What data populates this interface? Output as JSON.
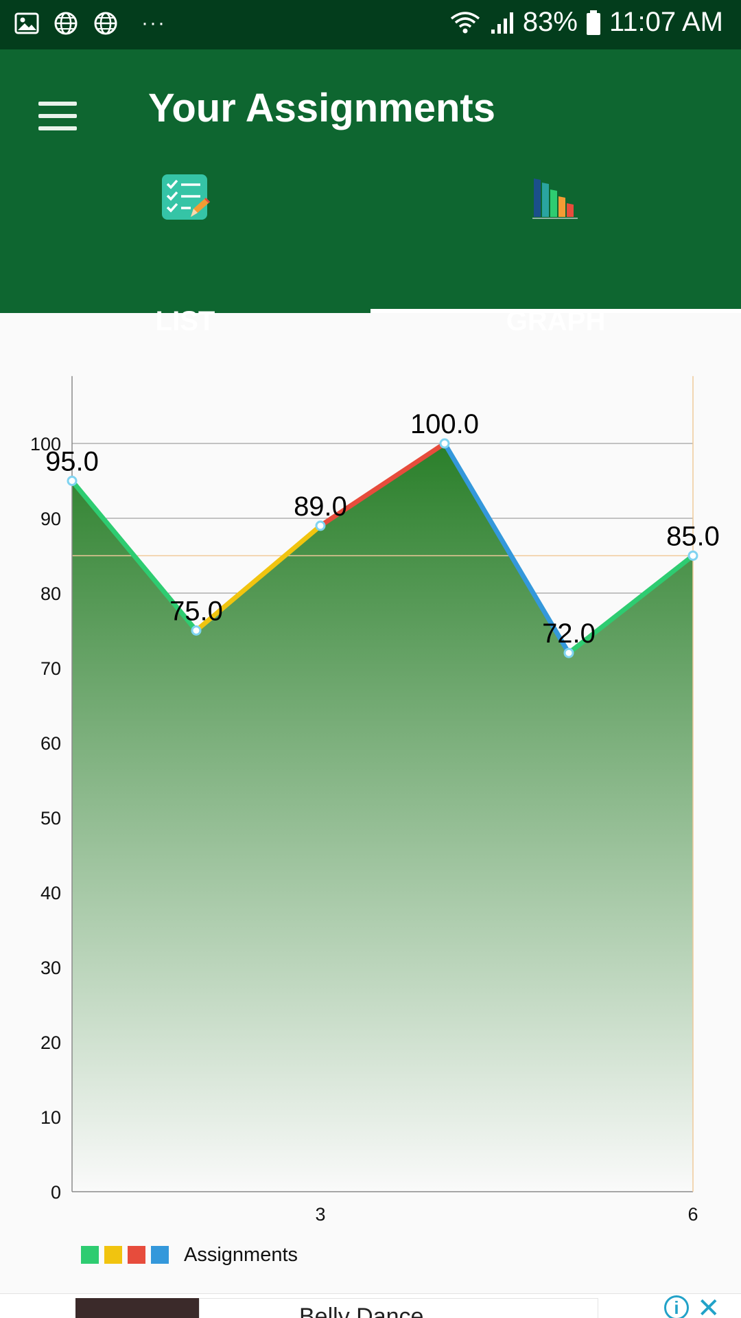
{
  "status_bar": {
    "left_icons": [
      "image-icon",
      "globe-icon",
      "globe-icon",
      "more-icon"
    ],
    "more_text": "···",
    "battery_percent": "83%",
    "time": "11:07 AM"
  },
  "app_bar": {
    "title": "Your Assignments",
    "menu_icon": "hamburger-menu-icon"
  },
  "tabs": [
    {
      "label": "LIST",
      "icon": "checklist-icon",
      "selected": false
    },
    {
      "label": "GRAPH",
      "icon": "bar-graph-icon",
      "selected": true
    }
  ],
  "chart_data": {
    "type": "line",
    "x": [
      1,
      2,
      3,
      4,
      5,
      6
    ],
    "values": [
      95.0,
      75.0,
      89.0,
      100.0,
      72.0,
      85.0
    ],
    "value_labels": [
      "95.0",
      "75.0",
      "89.0",
      "100.0",
      "72.0",
      "85.0"
    ],
    "x_tick_labels": [
      {
        "x": 3,
        "label": "3"
      },
      {
        "x": 6,
        "label": "6"
      }
    ],
    "y_ticks": [
      0,
      10,
      20,
      30,
      40,
      50,
      60,
      70,
      80,
      90,
      100
    ],
    "xlim": [
      1,
      6
    ],
    "ylim": [
      0,
      109
    ],
    "limit_line": 85,
    "segment_colors": [
      "#2ecc71",
      "#f1c40f",
      "#e74c3c",
      "#3498db",
      "#2ecc71"
    ],
    "fill_color": "#2a7f2a",
    "limit_line_color": "#f0c99a",
    "grid": true,
    "legend": {
      "label": "Assignments",
      "colors": [
        "#2ecc71",
        "#f1c40f",
        "#e74c3c",
        "#3498db"
      ],
      "placement": "bottom-left"
    }
  },
  "ad": {
    "title": "Belly Dance",
    "info_glyph": "i",
    "close_glyph": "✕"
  },
  "colors": {
    "status_bar": "#033d1c",
    "app_bar": "#0e6630",
    "indicator": "#ffffff"
  }
}
